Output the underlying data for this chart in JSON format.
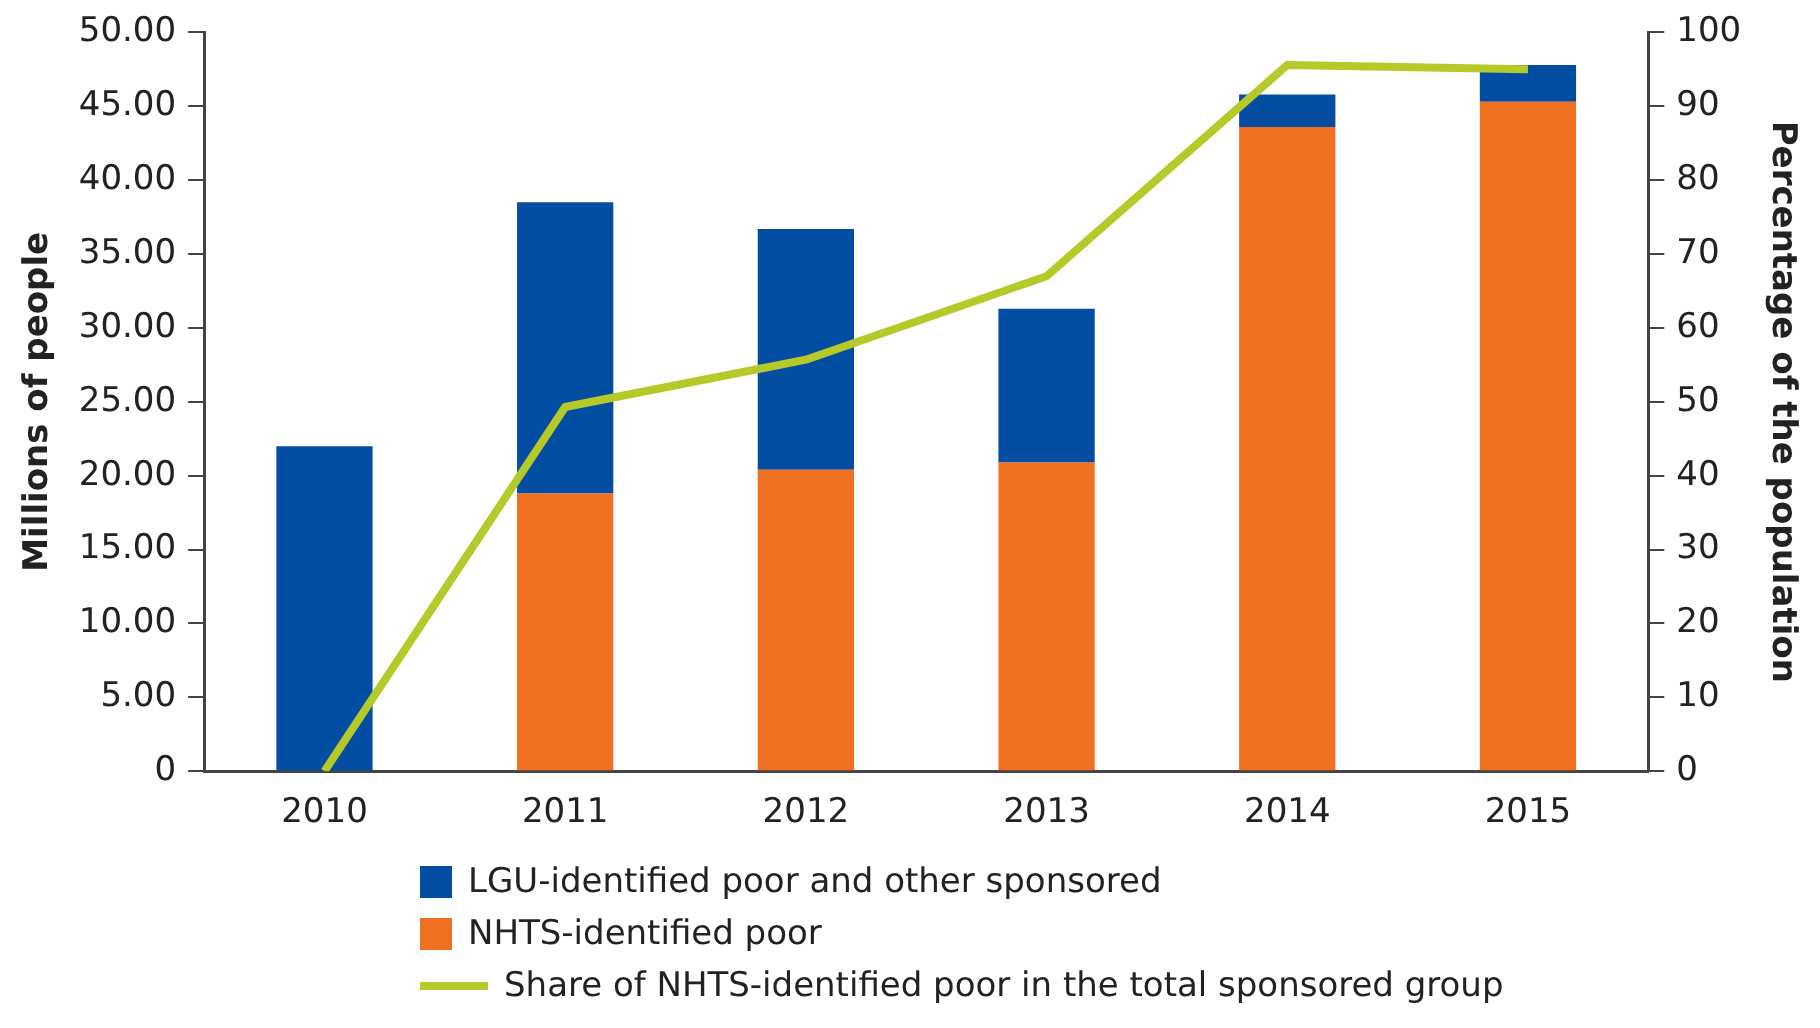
{
  "chart_data": {
    "type": "bar",
    "stacked": true,
    "ylabel": "Millions of people",
    "y2label": "Percentage of the population",
    "categories": [
      "2010",
      "2011",
      "2012",
      "2013",
      "2014",
      "2015"
    ],
    "series": [
      {
        "name": "NHTS-identified poor",
        "color": "#f07022",
        "values": [
          0,
          18.8,
          20.4,
          20.9,
          43.6,
          45.3
        ]
      },
      {
        "name": "LGU-identified poor and other sponsored",
        "color": "#034ea2",
        "values": [
          22.0,
          19.7,
          16.3,
          10.4,
          2.2,
          2.5
        ]
      },
      {
        "name": "Share of NHTS-identified poor in the total sponsored group",
        "type": "line",
        "axis": "y2",
        "color": "#b5c928",
        "values": [
          0,
          49.3,
          55.7,
          67,
          95.6,
          95
        ]
      }
    ],
    "ylim": [
      0,
      50
    ],
    "yticks": [
      {
        "value": 0,
        "label": "0"
      },
      {
        "value": 5,
        "label": "5.00"
      },
      {
        "value": 10,
        "label": "10.00"
      },
      {
        "value": 15,
        "label": "15.00"
      },
      {
        "value": 20,
        "label": "20.00"
      },
      {
        "value": 25,
        "label": "25.00"
      },
      {
        "value": 30,
        "label": "30.00"
      },
      {
        "value": 35,
        "label": "35.00"
      },
      {
        "value": 40,
        "label": "40.00"
      },
      {
        "value": 45,
        "label": "45.00"
      },
      {
        "value": 50,
        "label": "50.00"
      }
    ],
    "y2lim": [
      0,
      100
    ],
    "y2ticks": [
      0,
      10,
      20,
      30,
      40,
      50,
      60,
      70,
      80,
      90,
      100
    ],
    "grid": false,
    "legend": "bottom",
    "marker": "none"
  }
}
